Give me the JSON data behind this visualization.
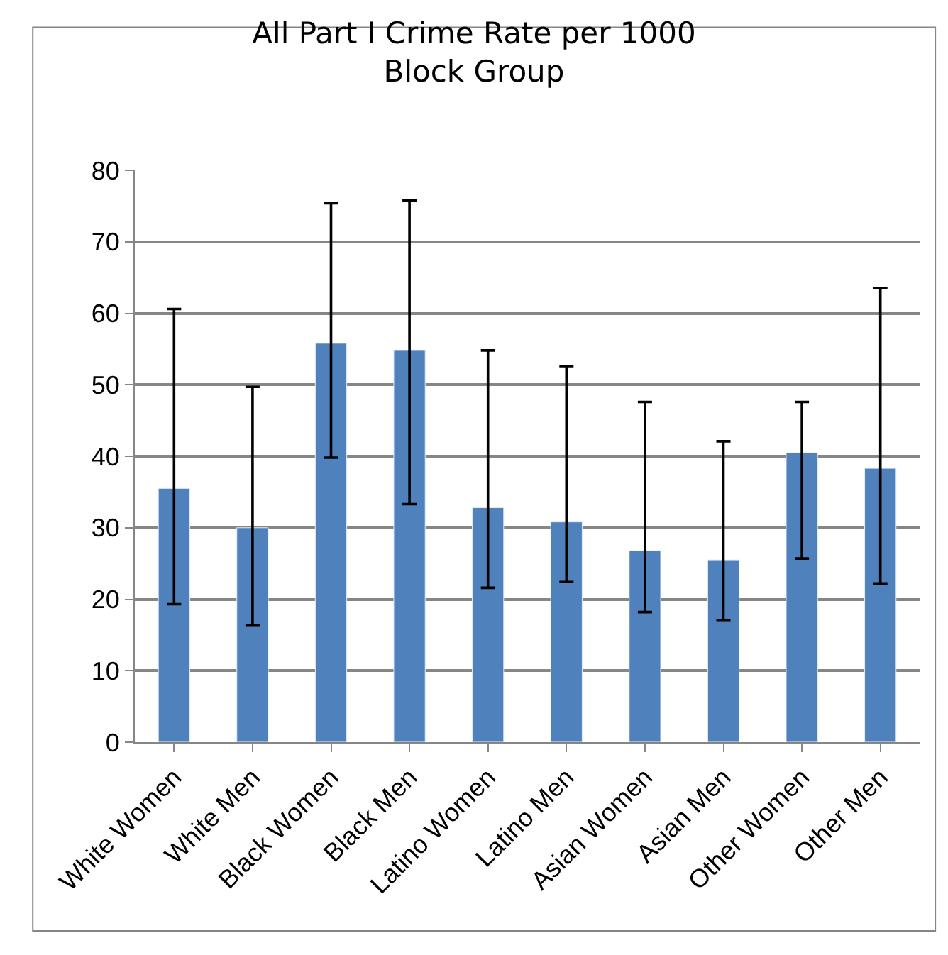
{
  "chart_data": {
    "type": "bar",
    "title": "All Part I Crime Rate per 1000\nBlock Group",
    "categories": [
      "White Women",
      "White Men",
      "Black Women",
      "Black Men",
      "Latino Women",
      "Latino Men",
      "Asian Women",
      "Asian Men",
      "Other Women",
      "Other Men"
    ],
    "values": [
      35.5,
      30,
      55.8,
      54.8,
      32.8,
      30.8,
      26.8,
      25.5,
      40.5,
      38.3
    ],
    "errors": [
      [
        19.3,
        60.6
      ],
      [
        16.3,
        49.7
      ],
      [
        39.8,
        75.4
      ],
      [
        33.3,
        75.8
      ],
      [
        21.6,
        54.8
      ],
      [
        22.4,
        52.6
      ],
      [
        18.2,
        47.6
      ],
      [
        17.1,
        42.1
      ],
      [
        25.7,
        47.6
      ],
      [
        22.2,
        63.5
      ]
    ],
    "color": "#4f81bd",
    "ylim": [
      0,
      80
    ],
    "yticks": [
      0,
      10,
      20,
      30,
      40,
      50,
      60,
      70,
      80
    ],
    "grid": "y",
    "legend": false
  }
}
